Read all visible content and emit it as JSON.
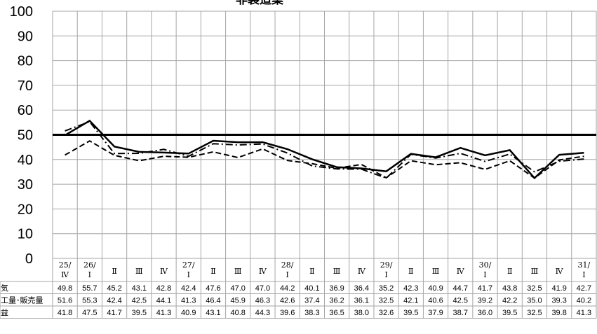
{
  "chart_data": {
    "type": "line",
    "title": "非製造業",
    "ylim": [
      0,
      100
    ],
    "yticks": [
      0,
      10,
      20,
      30,
      40,
      50,
      60,
      70,
      80,
      90,
      100
    ],
    "reference_line": 50,
    "grid": true,
    "categories": [
      {
        "top": "25/",
        "bottom": "Ⅳ"
      },
      {
        "top": "26/",
        "bottom": "Ⅰ"
      },
      {
        "top": "",
        "bottom": "Ⅱ"
      },
      {
        "top": "",
        "bottom": "Ⅲ"
      },
      {
        "top": "",
        "bottom": "Ⅳ"
      },
      {
        "top": "27/",
        "bottom": "Ⅰ"
      },
      {
        "top": "",
        "bottom": "Ⅱ"
      },
      {
        "top": "",
        "bottom": "Ⅲ"
      },
      {
        "top": "",
        "bottom": "Ⅳ"
      },
      {
        "top": "28/",
        "bottom": "Ⅰ"
      },
      {
        "top": "",
        "bottom": "Ⅱ"
      },
      {
        "top": "",
        "bottom": "Ⅲ"
      },
      {
        "top": "",
        "bottom": "Ⅳ"
      },
      {
        "top": "29/",
        "bottom": "Ⅰ"
      },
      {
        "top": "",
        "bottom": "Ⅱ"
      },
      {
        "top": "",
        "bottom": "Ⅲ"
      },
      {
        "top": "",
        "bottom": "Ⅳ"
      },
      {
        "top": "30/",
        "bottom": "Ⅰ"
      },
      {
        "top": "",
        "bottom": "Ⅱ"
      },
      {
        "top": "",
        "bottom": "Ⅲ"
      },
      {
        "top": "",
        "bottom": "Ⅳ"
      },
      {
        "top": "31/",
        "bottom": "Ⅰ"
      }
    ],
    "series": [
      {
        "name": "気",
        "style": "solid",
        "values": [
          49.8,
          55.7,
          45.2,
          43.1,
          42.8,
          42.4,
          47.6,
          47.0,
          47.0,
          44.2,
          40.1,
          36.9,
          36.4,
          35.2,
          42.3,
          40.9,
          44.7,
          41.7,
          43.8,
          32.5,
          41.9,
          42.7
        ]
      },
      {
        "name": "工量･販売量",
        "style": "dashdot",
        "values": [
          51.6,
          55.3,
          42.4,
          42.5,
          44.1,
          41.3,
          46.4,
          45.9,
          46.3,
          42.6,
          37.4,
          36.2,
          36.1,
          32.5,
          42.1,
          40.6,
          42.5,
          39.2,
          42.2,
          35.0,
          39.3,
          40.2
        ]
      },
      {
        "name": "益",
        "style": "dashed",
        "values": [
          41.8,
          47.5,
          41.7,
          39.5,
          41.3,
          40.9,
          43.1,
          40.8,
          44.3,
          39.6,
          38.3,
          36.5,
          38.0,
          32.6,
          39.5,
          37.9,
          38.7,
          36.0,
          39.5,
          32.5,
          39.8,
          41.3
        ]
      }
    ]
  }
}
